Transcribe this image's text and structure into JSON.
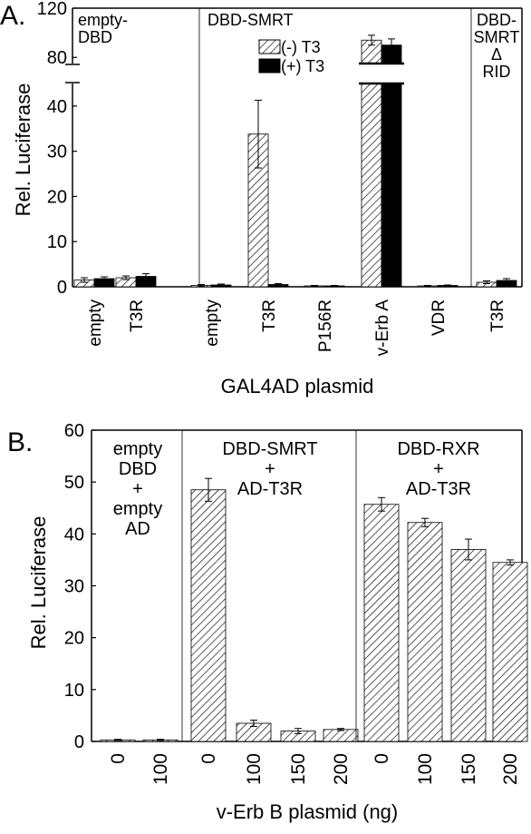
{
  "panels": {
    "a": {
      "label": "A."
    },
    "b": {
      "label": "B."
    }
  },
  "colors": {
    "minus_t3": "#ffffff",
    "plus_t3": "#000000",
    "hatch": "#000000"
  },
  "chart_data": [
    {
      "type": "bar",
      "panel": "A.",
      "ylabel": "Rel. Luciferase",
      "xlabel": "GAL4AD plasmid",
      "yaxis_break": true,
      "ylim_lower": [
        0,
        45
      ],
      "ylim_upper": [
        75,
        120
      ],
      "yticks": [
        "0",
        "10",
        "20",
        "30",
        "40",
        "80",
        "120"
      ],
      "categories": [
        "empty",
        "T3R",
        "empty",
        "T3R",
        "P156R",
        "v-Erb A",
        "VDR",
        "T3R"
      ],
      "groups": [
        {
          "label": [
            "empty-",
            "DBD"
          ],
          "start": 0,
          "end": 1
        },
        {
          "label": [
            "DBD-SMRT"
          ],
          "start": 2,
          "end": 6
        },
        {
          "label": [
            "DBD-",
            "SMRT",
            "Δ",
            "RID"
          ],
          "start": 7,
          "end": 7
        }
      ],
      "series": [
        {
          "name": "(-) T3",
          "pattern": "hatched",
          "values": [
            1.5,
            2.0,
            0.3,
            33.8,
            0.2,
            94,
            0.2,
            1.0
          ],
          "errors": [
            0.5,
            0.4,
            0.2,
            7.5,
            0.1,
            4,
            0.1,
            0.3
          ]
        },
        {
          "name": "(+) T3",
          "pattern": "solid",
          "values": [
            1.8,
            2.3,
            0.4,
            0.5,
            0.2,
            90,
            0.3,
            1.4
          ],
          "errors": [
            0.4,
            0.6,
            0.2,
            0.2,
            0.1,
            5,
            0.1,
            0.4
          ]
        }
      ],
      "legend_position": "top-center"
    },
    {
      "type": "bar",
      "panel": "B.",
      "ylabel": "Rel. Luciferase",
      "xlabel": "v-Erb B plasmid (ng)",
      "ylim": [
        0,
        60
      ],
      "yticks": [
        "0",
        "10",
        "20",
        "30",
        "40",
        "50",
        "60"
      ],
      "categories": [
        "0",
        "100",
        "0",
        "100",
        "150",
        "200",
        "0",
        "100",
        "150",
        "200"
      ],
      "groups": [
        {
          "label": [
            "empty",
            "DBD",
            "+",
            "empty",
            "AD"
          ],
          "start": 0,
          "end": 1
        },
        {
          "label": [
            "DBD-SMRT",
            "+",
            "AD-T3R"
          ],
          "start": 2,
          "end": 5
        },
        {
          "label": [
            "DBD-RXR",
            "+",
            "AD-T3R"
          ],
          "start": 6,
          "end": 9
        }
      ],
      "series": [
        {
          "pattern": "hatched",
          "values": [
            0.3,
            0.3,
            48.5,
            3.5,
            2.0,
            2.3,
            45.7,
            42.2,
            37.0,
            34.5
          ],
          "errors": [
            0.1,
            0.1,
            2.2,
            0.6,
            0.5,
            0.2,
            1.3,
            0.8,
            2.0,
            0.5
          ]
        }
      ]
    }
  ]
}
